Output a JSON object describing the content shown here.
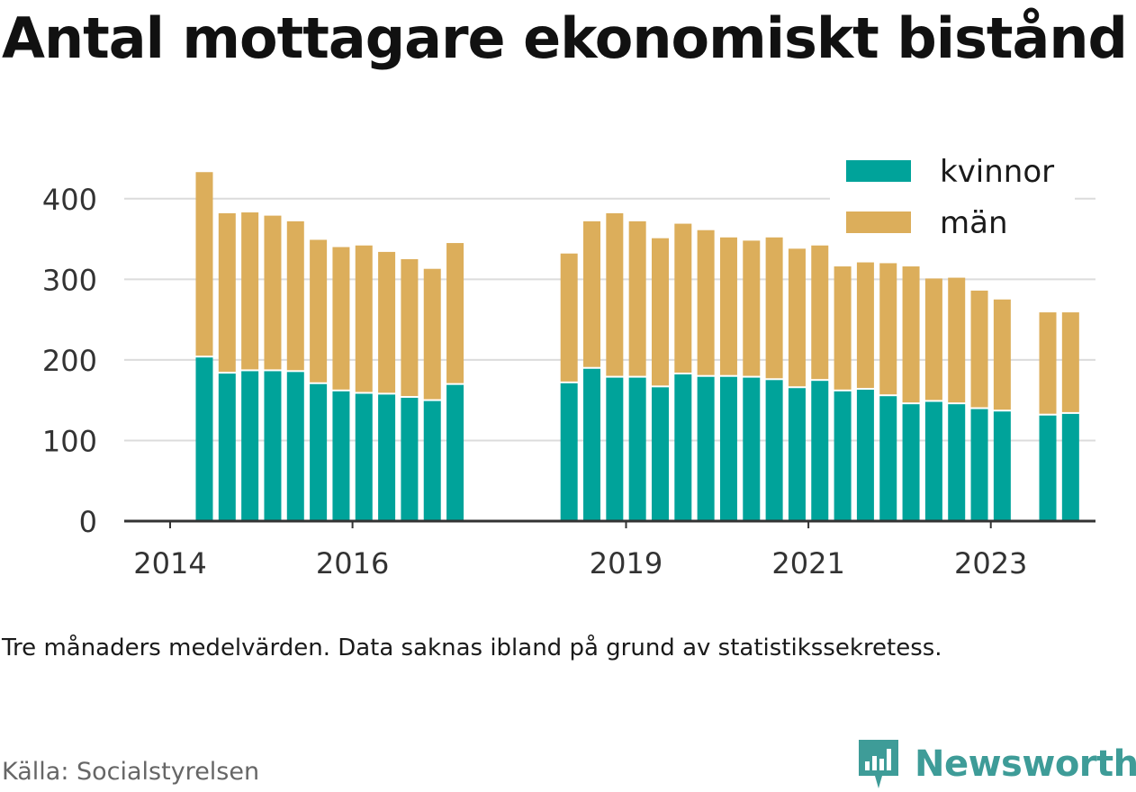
{
  "title": "Antal mottagare ekonomiskt bistånd",
  "note": "Tre månaders medelvärden. Data saknas ibland på grund av statistikssekretess.",
  "source": "Källa: Socialstyrelsen",
  "brand": {
    "name": "Newsworthy",
    "icon": "newsworthy-logo-icon",
    "color": "#3e9c98"
  },
  "chart_data": {
    "type": "bar",
    "stacked": true,
    "x_unit": "quarter",
    "x_ticks": [
      "2014",
      "2016",
      "2019",
      "2021",
      "2023"
    ],
    "y_ticks": [
      0,
      100,
      200,
      300,
      400
    ],
    "ylim": [
      0,
      440
    ],
    "grid": true,
    "legend": "top-right",
    "x": [
      "2014 Q2",
      "2014 Q3",
      "2014 Q4",
      "2015 Q1",
      "2015 Q2",
      "2015 Q3",
      "2015 Q4",
      "2016 Q1",
      "2016 Q2",
      "2016 Q3",
      "2016 Q4",
      "2017 Q1",
      "2018 Q2",
      "2018 Q3",
      "2018 Q4",
      "2019 Q1",
      "2019 Q2",
      "2019 Q3",
      "2019 Q4",
      "2020 Q1",
      "2020 Q2",
      "2020 Q3",
      "2020 Q4",
      "2021 Q1",
      "2021 Q2",
      "2021 Q3",
      "2021 Q4",
      "2022 Q1",
      "2022 Q2",
      "2022 Q3",
      "2022 Q4",
      "2023 Q1",
      "2023 Q3",
      "2023 Q4"
    ],
    "series": [
      {
        "name": "kvinnor",
        "color": "#00a39a",
        "values": [
          203,
          183,
          186,
          186,
          185,
          170,
          161,
          158,
          157,
          153,
          149,
          169,
          171,
          189,
          178,
          178,
          166,
          182,
          179,
          179,
          178,
          175,
          165,
          174,
          161,
          163,
          155,
          145,
          148,
          145,
          139,
          136,
          131,
          133
        ]
      },
      {
        "name": "män",
        "color": "#dcae5b",
        "values": [
          230,
          199,
          197,
          193,
          187,
          179,
          179,
          184,
          177,
          172,
          164,
          176,
          161,
          183,
          204,
          194,
          185,
          187,
          182,
          173,
          170,
          177,
          173,
          168,
          155,
          158,
          165,
          171,
          153,
          157,
          147,
          139,
          128,
          126
        ]
      }
    ]
  }
}
